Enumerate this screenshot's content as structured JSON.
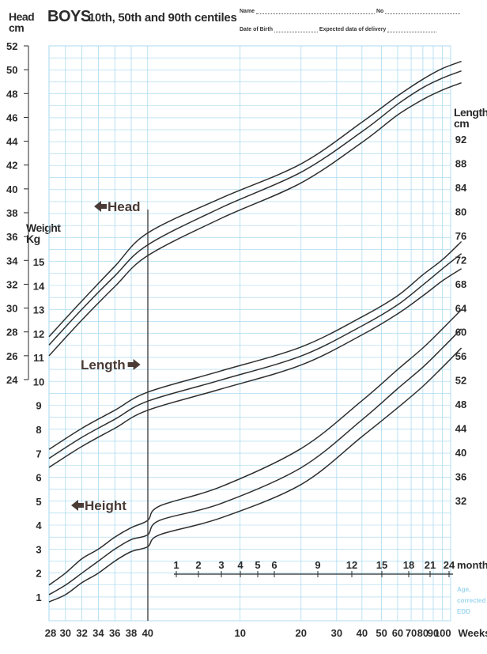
{
  "header": {
    "title": "BOYS",
    "subtitle": "10th, 50th and 90th centiles",
    "name_label": "Name",
    "no_label": "No",
    "dob_label": "Date of Birth",
    "edd_label": "Expected data of delivery"
  },
  "chart_data": {
    "type": "line",
    "title": "BOYS",
    "subtitle": "10th, 50th and 90th centiles",
    "axes": {
      "head": {
        "label": "Head cm",
        "unit": "cm",
        "range": [
          24,
          52
        ],
        "ticks": [
          24,
          26,
          28,
          30,
          32,
          34,
          36,
          38,
          40,
          42,
          44,
          46,
          48,
          50,
          52
        ]
      },
      "weight": {
        "label": "Weight Kg",
        "unit": "Kg",
        "range": [
          0.5,
          15
        ],
        "ticks": [
          1,
          2,
          3,
          4,
          5,
          6,
          7,
          8,
          9,
          10,
          11,
          12,
          13,
          14,
          15
        ]
      },
      "length": {
        "label": "Length cm",
        "unit": "cm",
        "range": [
          32,
          92
        ],
        "ticks": [
          32,
          36,
          40,
          44,
          48,
          52,
          56,
          60,
          64,
          68,
          72,
          76,
          80,
          84,
          88,
          92
        ]
      },
      "x_weeks": {
        "label": "Weeks",
        "scale": "log",
        "ticks": [
          "28",
          "30",
          "32",
          "34",
          "36",
          "38",
          "40",
          "10",
          "20",
          "30",
          "40",
          "50",
          "60",
          "70",
          "80",
          "90",
          "100"
        ]
      },
      "months": {
        "label": "months",
        "ticks": [
          "1",
          "2",
          "3",
          "4",
          "5",
          "6",
          "9",
          "12",
          "15",
          "18",
          "21",
          "24"
        ]
      },
      "corrected_note": "Age, corrected to EDD"
    },
    "grid": true,
    "annotations": [
      "Head",
      "Length",
      "Height"
    ],
    "series": [
      {
        "group": "Head",
        "values": [
          [
            28,
            27.6
          ],
          [
            32,
            30.6
          ],
          [
            36,
            33.5
          ],
          [
            40,
            36.3
          ],
          [
            48,
            39.2
          ],
          [
            60,
            42.1
          ],
          [
            80,
            45.6
          ],
          [
            100,
            47.8
          ],
          [
            120,
            49.2
          ],
          [
            140,
            50.1
          ],
          [
            164,
            50.7
          ]
        ]
      },
      {
        "group": "Head",
        "values": [
          [
            28,
            26.9
          ],
          [
            32,
            29.9
          ],
          [
            36,
            32.7
          ],
          [
            40,
            35.3
          ],
          [
            48,
            38.4
          ],
          [
            60,
            41.4
          ],
          [
            80,
            44.8
          ],
          [
            100,
            47.1
          ],
          [
            120,
            48.5
          ],
          [
            140,
            49.3
          ],
          [
            164,
            49.9
          ]
        ]
      },
      {
        "group": "Head",
        "values": [
          [
            28,
            26.0
          ],
          [
            32,
            29.0
          ],
          [
            36,
            31.8
          ],
          [
            40,
            34.4
          ],
          [
            48,
            37.5
          ],
          [
            60,
            40.5
          ],
          [
            80,
            43.9
          ],
          [
            100,
            46.2
          ],
          [
            120,
            47.5
          ],
          [
            140,
            48.3
          ],
          [
            164,
            48.9
          ]
        ]
      },
      {
        "group": "Length",
        "values": [
          [
            28,
            40.5
          ],
          [
            32,
            44.0
          ],
          [
            36,
            47.0
          ],
          [
            40,
            50.0
          ],
          [
            48,
            53.5
          ],
          [
            60,
            57.5
          ],
          [
            80,
            62.5
          ],
          [
            100,
            66.0
          ],
          [
            120,
            69.5
          ],
          [
            140,
            72.0
          ],
          [
            164,
            75.0
          ]
        ]
      },
      {
        "group": "Length",
        "values": [
          [
            28,
            39.0
          ],
          [
            32,
            42.5
          ],
          [
            36,
            45.5
          ],
          [
            40,
            48.5
          ],
          [
            48,
            52.0
          ],
          [
            60,
            56.0
          ],
          [
            80,
            61.0
          ],
          [
            100,
            64.5
          ],
          [
            120,
            67.8
          ],
          [
            140,
            70.5
          ],
          [
            164,
            73.0
          ]
        ]
      },
      {
        "group": "Length",
        "values": [
          [
            28,
            37.5
          ],
          [
            32,
            41.0
          ],
          [
            36,
            44.0
          ],
          [
            40,
            47.0
          ],
          [
            48,
            50.5
          ],
          [
            60,
            54.5
          ],
          [
            80,
            59.5
          ],
          [
            100,
            63.0
          ],
          [
            120,
            66.0
          ],
          [
            140,
            68.5
          ],
          [
            164,
            70.5
          ]
        ]
      },
      {
        "group": "Weight",
        "values": [
          [
            28,
            1.5
          ],
          [
            30,
            2.0
          ],
          [
            32,
            2.6
          ],
          [
            34,
            3.0
          ],
          [
            36,
            3.5
          ],
          [
            38,
            3.9
          ],
          [
            40,
            4.2
          ],
          [
            44,
            4.8
          ],
          [
            48,
            5.6
          ],
          [
            60,
            7.2
          ],
          [
            80,
            9.2
          ],
          [
            100,
            10.5
          ],
          [
            120,
            11.4
          ],
          [
            140,
            12.2
          ],
          [
            164,
            13.0
          ]
        ]
      },
      {
        "group": "Weight",
        "values": [
          [
            28,
            1.1
          ],
          [
            30,
            1.5
          ],
          [
            32,
            2.0
          ],
          [
            34,
            2.5
          ],
          [
            36,
            3.0
          ],
          [
            38,
            3.4
          ],
          [
            40,
            3.6
          ],
          [
            44,
            4.2
          ],
          [
            48,
            4.9
          ],
          [
            60,
            6.4
          ],
          [
            80,
            8.4
          ],
          [
            100,
            9.7
          ],
          [
            120,
            10.6
          ],
          [
            140,
            11.4
          ],
          [
            164,
            12.2
          ]
        ]
      },
      {
        "group": "Weight",
        "values": [
          [
            28,
            0.8
          ],
          [
            30,
            1.1
          ],
          [
            32,
            1.6
          ],
          [
            34,
            2.0
          ],
          [
            36,
            2.5
          ],
          [
            38,
            2.9
          ],
          [
            40,
            3.1
          ],
          [
            44,
            3.6
          ],
          [
            48,
            4.3
          ],
          [
            60,
            5.7
          ],
          [
            80,
            7.7
          ],
          [
            100,
            8.9
          ],
          [
            120,
            9.8
          ],
          [
            140,
            10.6
          ],
          [
            164,
            11.4
          ]
        ]
      }
    ]
  }
}
